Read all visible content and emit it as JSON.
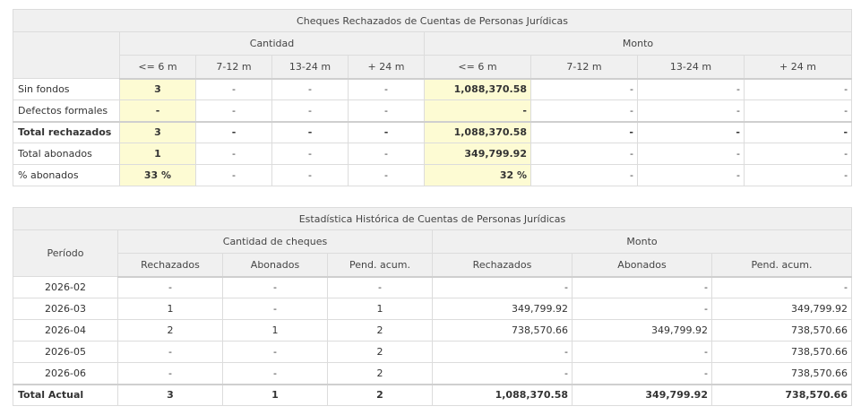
{
  "table1": {
    "title": "Cheques Rechazados de Cuentas de Personas Jurídicas",
    "group_cantidad": "Cantidad",
    "group_monto": "Monto",
    "sub_headers": [
      "<= 6 m",
      "7-12 m",
      "13-24 m",
      "+ 24 m",
      "<= 6 m",
      "7-12 m",
      "13-24 m",
      "+ 24 m"
    ],
    "rows": [
      {
        "label": "Sin fondos",
        "values": [
          "3",
          "-",
          "-",
          "-",
          "1,088,370.58",
          "-",
          "-",
          "-"
        ]
      },
      {
        "label": "Defectos formales",
        "values": [
          "-",
          "-",
          "-",
          "-",
          "-",
          "-",
          "-",
          "-"
        ]
      },
      {
        "label": "Total rechazados",
        "values": [
          "3",
          "-",
          "-",
          "-",
          "1,088,370.58",
          "-",
          "-",
          "-"
        ]
      },
      {
        "label": "Total abonados",
        "values": [
          "1",
          "-",
          "-",
          "-",
          "349,799.92",
          "-",
          "-",
          "-"
        ]
      },
      {
        "label": "% abonados",
        "values": [
          "33 %",
          "-",
          "-",
          "-",
          "32 %",
          "-",
          "-",
          "-"
        ]
      }
    ]
  },
  "table2": {
    "title": "Estadística Histórica de Cuentas de Personas Jurídicas",
    "periodo_header": "Período",
    "group_cantidad": "Cantidad de cheques",
    "group_monto": "Monto",
    "sub_headers": [
      "Rechazados",
      "Abonados",
      "Pend. acum.",
      "Rechazados",
      "Abonados",
      "Pend. acum."
    ],
    "rows": [
      {
        "periodo": "2026-02",
        "values": [
          "-",
          "-",
          "-",
          "-",
          "-",
          "-"
        ]
      },
      {
        "periodo": "2026-03",
        "values": [
          "1",
          "-",
          "1",
          "349,799.92",
          "-",
          "349,799.92"
        ]
      },
      {
        "periodo": "2026-04",
        "values": [
          "2",
          "1",
          "2",
          "738,570.66",
          "349,799.92",
          "738,570.66"
        ]
      },
      {
        "periodo": "2026-05",
        "values": [
          "-",
          "-",
          "2",
          "-",
          "-",
          "738,570.66"
        ]
      },
      {
        "periodo": "2026-06",
        "values": [
          "-",
          "-",
          "2",
          "-",
          "-",
          "738,570.66"
        ]
      }
    ],
    "total": {
      "label": "Total Actual",
      "values": [
        "3",
        "1",
        "2",
        "1,088,370.58",
        "349,799.92",
        "738,570.66"
      ]
    }
  }
}
